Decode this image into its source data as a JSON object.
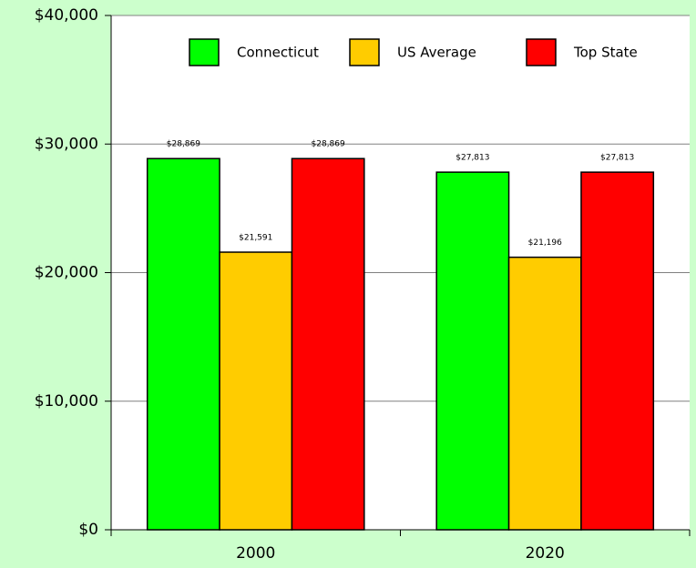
{
  "chart_data": {
    "type": "bar",
    "categories": [
      "2000",
      "2020"
    ],
    "series": [
      {
        "name": "Connecticut",
        "color": "#00ff00",
        "values": [
          28869,
          27813
        ],
        "value_labels": [
          "$28,869",
          "$27,813"
        ]
      },
      {
        "name": "US Average",
        "color": "#ffcc00",
        "values": [
          21591,
          21196
        ],
        "value_labels": [
          "$21,591",
          "$21,196"
        ]
      },
      {
        "name": "Top State",
        "color": "#ff0000",
        "values": [
          28869,
          27813
        ],
        "value_labels": [
          "$28,869",
          "$27,813"
        ]
      }
    ],
    "ylim": [
      0,
      40000
    ],
    "yticks": [
      {
        "value": 0,
        "label": "$0"
      },
      {
        "value": 10000,
        "label": "$10,000"
      },
      {
        "value": 20000,
        "label": "$20,000"
      },
      {
        "value": 30000,
        "label": "$30,000"
      },
      {
        "value": 40000,
        "label": "$40,000"
      }
    ],
    "grid": true,
    "legend": "top-right"
  }
}
